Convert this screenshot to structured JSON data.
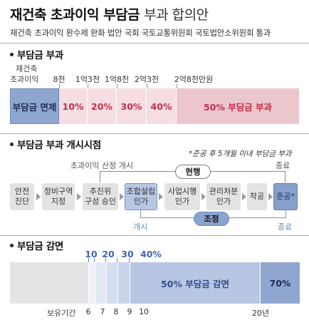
{
  "header": {
    "title_bold": "재건축 초과이익 부담금",
    "title_light": "부과 합의안",
    "subtitle": "재건축 초과이익 환수제 완화 법안 국회 국토교통위원회 국토법안소위원회 통과"
  },
  "section1": {
    "title": "부담금 부과",
    "left_label_line1": "재건축",
    "left_label_line2": "초과이익",
    "ticks": [
      "8천",
      "1억3천",
      "1억8천",
      "2억3천",
      "2억8천만원"
    ],
    "segments": [
      "부담금 면제",
      "10%",
      "20%",
      "30%",
      "40%",
      "50% 부담금 부과"
    ]
  },
  "section2": {
    "title": "부담금 부과 개시시점",
    "note": "*준공 후 5개월 이내 부담금 부과",
    "top_left_label": "초과이익 산정 개시",
    "top_right_label": "종료",
    "current_label": "현행",
    "adjusted_label": "조정",
    "bottom_left_label": "개시",
    "bottom_right_label": "종료",
    "steps": [
      {
        "line1": "안전",
        "line2": "진단"
      },
      {
        "line1": "정비구역",
        "line2": "지정"
      },
      {
        "line1": "추진위",
        "line2": "구성 승인"
      },
      {
        "line1": "조합설립",
        "line2": "인가"
      },
      {
        "line1": "사업시행",
        "line2": "인가"
      },
      {
        "line1": "관리처분",
        "line2": "인가"
      },
      {
        "line1": "착공",
        "line2": ""
      },
      {
        "line1": "준공*",
        "line2": ""
      }
    ]
  },
  "section3": {
    "title": "부담금 감면",
    "top_labels": [
      "10",
      "20",
      "30",
      "40%"
    ],
    "mid_label": "50%  부담금 감면",
    "right_label": "70%",
    "bottom_prefix": "보유기간",
    "bottom_ticks": [
      "6",
      "7",
      "8",
      "9",
      "10",
      "20년"
    ]
  },
  "colors": {
    "exempt": "#8fa7cf",
    "tax_light": "#f6dde2",
    "tax_dark": "#ecc6cd",
    "tax_text": "#c0304a",
    "blue_accent": "#3f66b3",
    "reduction_blue": "#b7c6e2",
    "reduction_dark": "#86a0cc"
  }
}
